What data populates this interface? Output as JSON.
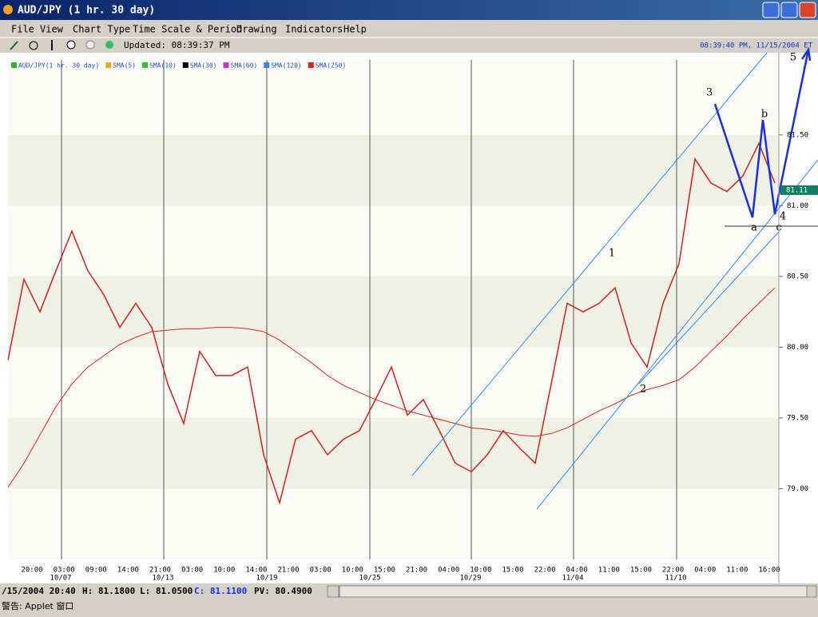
{
  "window": {
    "title": "AUD/JPY (1 hr.  30 day)"
  },
  "menu": [
    "File",
    "View",
    "Chart Type",
    "Time Scale & Period",
    "Drawing",
    "Indicators",
    "Help"
  ],
  "toolbar": {
    "updated": "Updated: 08:39:37 PM",
    "clock": "08:39:40 PM, 11/15/2004 ET"
  },
  "status": {
    "date": "/15/2004 20:40",
    "high": "H: 81.1800",
    "low": "L: 81.0500",
    "close": "C: 81.1100",
    "pv": "PV: 80.4900",
    "applet": "警告: Applet 窗口"
  },
  "chart_data": {
    "type": "line",
    "legend": [
      {
        "name": "AUD/JPY(1 hr.  30 day)",
        "color": "#22bb22"
      },
      {
        "name": "SMA(5)",
        "color": "#e0b020"
      },
      {
        "name": "SMA(10)",
        "color": "#30c030"
      },
      {
        "name": "SMA(30)",
        "color": "#000000"
      },
      {
        "name": "SMA(60)",
        "color": "#cc33cc"
      },
      {
        "name": "SMA(120)",
        "color": "#3388ee"
      },
      {
        "name": "SMA(250)",
        "color": "#dd2222"
      }
    ],
    "series": [
      {
        "color": "#cc2020",
        "values": [
          79.91,
          80.48,
          80.25,
          80.54,
          80.82,
          80.54,
          80.37,
          80.14,
          80.31,
          80.14,
          79.74,
          79.46,
          79.97,
          79.8,
          79.8,
          79.86,
          79.24,
          78.9,
          79.35,
          79.41,
          79.24,
          79.35,
          79.41,
          79.63,
          79.86,
          79.52,
          79.63,
          79.41,
          79.18,
          79.12,
          79.24,
          79.41,
          79.29,
          79.18,
          79.74,
          80.31,
          80.25,
          80.31,
          80.42,
          80.03,
          79.86,
          80.31,
          80.59,
          81.33,
          81.16,
          81.1,
          81.21,
          81.44,
          81.16
        ]
      },
      {
        "color": "#dd2222",
        "values": [
          79.01,
          79.18,
          79.38,
          79.58,
          79.74,
          79.86,
          79.94,
          80.02,
          80.07,
          80.11,
          80.12,
          80.13,
          80.13,
          80.14,
          80.14,
          80.13,
          80.11,
          80.05,
          79.97,
          79.89,
          79.8,
          79.73,
          79.68,
          79.63,
          79.59,
          79.55,
          79.52,
          79.49,
          79.46,
          79.43,
          79.42,
          79.4,
          79.38,
          79.37,
          79.39,
          79.43,
          79.49,
          79.55,
          79.6,
          79.66,
          79.7,
          79.73,
          79.77,
          79.86,
          79.97,
          80.08,
          80.2,
          80.31,
          80.42
        ]
      }
    ],
    "ylim": [
      78.5,
      82.03
    ],
    "yticks": [
      {
        "value": 79,
        "label": "79.00"
      },
      {
        "value": 79.5,
        "label": "79.50"
      },
      {
        "value": 80,
        "label": "80.00"
      },
      {
        "value": 80.5,
        "label": "80.50"
      },
      {
        "value": 81,
        "label": "81.00"
      },
      {
        "value": 81.5,
        "label": "81.50"
      }
    ],
    "x_tick_labels": [
      "20:00",
      "03:00",
      "09:00",
      "14:00",
      "21:00",
      "03:00",
      "10:00",
      "14:00",
      "21:00",
      "03:00",
      "10:00",
      "15:00",
      "21:00",
      "04:00",
      "10:00",
      "15:00",
      "22:00",
      "04:00",
      "11:00",
      "15:00",
      "22:00",
      "04:00",
      "11:00",
      "16:00"
    ],
    "date_labels": [
      "10/07",
      "10/13",
      "10/19",
      "10/25",
      "10/29",
      "11/04",
      "11/10"
    ],
    "last_price": 81.11,
    "annotations": [
      "1",
      "2",
      "3",
      "4",
      "5",
      "a",
      "b",
      "c"
    ]
  }
}
